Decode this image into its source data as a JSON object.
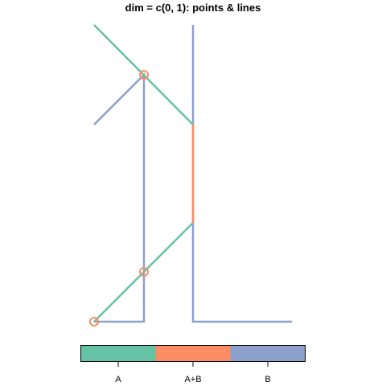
{
  "title": "dim = c(0, 1): points & lines",
  "colors": {
    "A": "#66c2a5",
    "A+B": "#fc8d62",
    "B": "#8da0cb"
  },
  "legend": {
    "labels": [
      "A",
      "A+B",
      "B"
    ]
  }
}
